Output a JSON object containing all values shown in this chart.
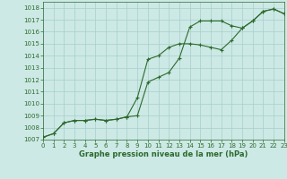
{
  "line1_x": [
    0,
    1,
    2,
    3,
    4,
    5,
    6,
    7,
    8,
    9,
    10,
    11,
    12,
    13,
    14,
    15,
    16,
    17,
    18,
    19,
    20,
    21,
    22,
    23
  ],
  "line1_y": [
    1007.2,
    1007.5,
    1008.4,
    1008.6,
    1008.6,
    1008.7,
    1008.6,
    1008.7,
    1008.9,
    1009.0,
    1011.8,
    1012.2,
    1012.6,
    1013.8,
    1016.4,
    1016.9,
    1016.9,
    1016.9,
    1016.5,
    1016.3,
    1016.9,
    1017.7,
    1017.9,
    1017.5
  ],
  "line2_x": [
    0,
    1,
    2,
    3,
    4,
    5,
    6,
    7,
    8,
    9,
    10,
    11,
    12,
    13,
    14,
    15,
    16,
    17,
    18,
    19,
    20,
    21,
    22,
    23
  ],
  "line2_y": [
    1007.2,
    1007.5,
    1008.4,
    1008.6,
    1008.6,
    1008.7,
    1008.6,
    1008.7,
    1008.9,
    1010.5,
    1013.7,
    1014.0,
    1014.7,
    1015.0,
    1015.0,
    1014.9,
    1014.7,
    1014.5,
    1015.3,
    1016.3,
    1016.9,
    1017.7,
    1017.9,
    1017.5
  ],
  "line_color": "#2d6a2d",
  "bg_color": "#cce9e5",
  "grid_color": "#a8ceca",
  "text_color": "#2d6a2d",
  "xlabel_label": "Graphe pression niveau de la mer (hPa)",
  "ylim": [
    1007.0,
    1018.5
  ],
  "xlim": [
    0,
    23
  ],
  "yticks": [
    1007,
    1008,
    1009,
    1010,
    1011,
    1012,
    1013,
    1014,
    1015,
    1016,
    1017,
    1018
  ],
  "xticks": [
    0,
    1,
    2,
    3,
    4,
    5,
    6,
    7,
    8,
    9,
    10,
    11,
    12,
    13,
    14,
    15,
    16,
    17,
    18,
    19,
    20,
    21,
    22,
    23
  ],
  "marker": "+",
  "marker_size": 3.5,
  "line_width": 0.8,
  "font_size_ticks": 5.0,
  "font_size_xlabel": 6.0
}
